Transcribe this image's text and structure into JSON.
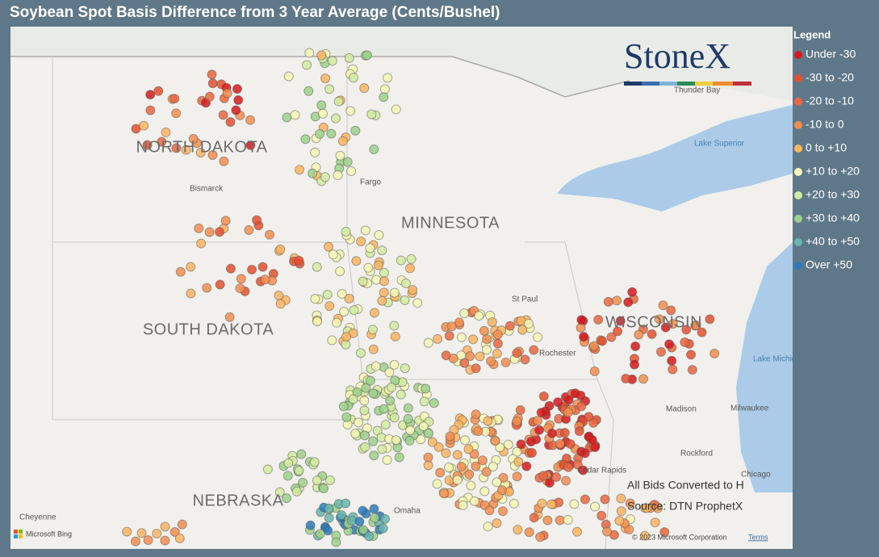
{
  "header": {
    "title": "Soybean Spot Basis Difference from 3 Year Average (Cents/Bushel)"
  },
  "legend": {
    "title": "Legend",
    "items": [
      {
        "label": "Under -30",
        "color": "#d7191c"
      },
      {
        "label": "-30 to -20",
        "color": "#e4502f"
      },
      {
        "label": "-20 to -10",
        "color": "#ea6640"
      },
      {
        "label": "-10 to 0",
        "color": "#f58d4f"
      },
      {
        "label": "0 to +10",
        "color": "#fdb462"
      },
      {
        "label": "+10 to +20",
        "color": "#f6f7b4"
      },
      {
        "label": "+20 to +30",
        "color": "#d3eba0"
      },
      {
        "label": "+30 to +40",
        "color": "#9fd18b"
      },
      {
        "label": "+40 to +50",
        "color": "#68b6ad"
      },
      {
        "label": "Over +50",
        "color": "#2b7bba"
      }
    ]
  },
  "map": {
    "states": [
      "NORTH DAKOTA",
      "MINNESOTA",
      "SOUTH DAKOTA",
      "WISCONSIN",
      "NEBRASKA"
    ],
    "places": [
      "Thunder Bay",
      "Lake Superior",
      "Bismarck",
      "Fargo",
      "St Paul",
      "Rochester",
      "Madison",
      "Milwaukee",
      "Lake Michigan",
      "Rockford",
      "Chicago",
      "Cedar Rapids",
      "Omaha",
      "Cheyenne"
    ]
  },
  "logo": "StoneX",
  "notes": [
    "All Bids Converted to H",
    "Source: DTN ProphetX"
  ],
  "attribution": {
    "bing": "Microsoft Bing",
    "copyright": "© 2023 Microsoft Corporation",
    "terms": "Terms"
  }
}
